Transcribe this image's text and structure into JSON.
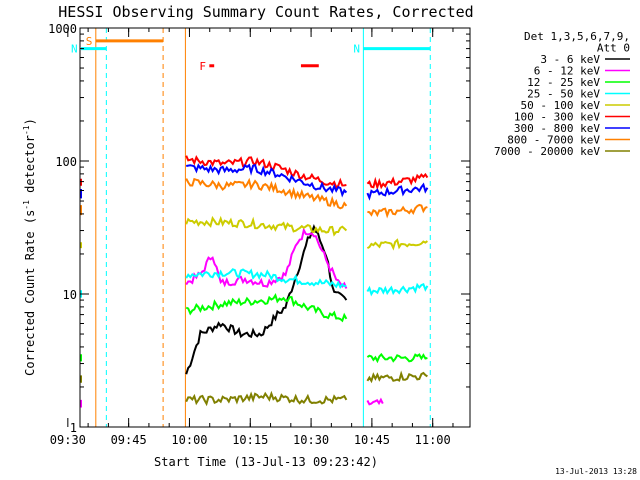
{
  "chart_data": {
    "type": "line",
    "title": "HESSI Observing Summary Count Rates, Corrected",
    "xlabel": "Start Time (13-Jul-13 09:23:42)",
    "ylabel": "Corrected Count Rate (s⁻¹ detector⁻¹)",
    "ylabel_parts": [
      "Corrected Count Rate (s",
      "-1",
      " detector",
      "-1",
      ")"
    ],
    "yscale": "log",
    "ylim": [
      1,
      1000
    ],
    "ytick_values": [
      1,
      10,
      100,
      1000
    ],
    "ytick_labels": [
      "1",
      "10",
      "100",
      "1000"
    ],
    "xlim_minutes": [
      9.3,
      105.5
    ],
    "xticks": [
      {
        "label": "09:30",
        "minute": 6.3
      },
      {
        "label": "09:45",
        "minute": 21.3
      },
      {
        "label": "10:00",
        "minute": 36.3
      },
      {
        "label": "10:15",
        "minute": 51.3
      },
      {
        "label": "10:30",
        "minute": 66.3
      },
      {
        "label": "10:45",
        "minute": 81.3
      },
      {
        "label": "11:00",
        "minute": 96.3
      }
    ],
    "legend_header": [
      "Det 1,3,5,6,7,9,",
      "Att 0"
    ],
    "legend_position": "right",
    "series": [
      {
        "name": "3 - 6 keV",
        "color": "#000000",
        "segments": [
          {
            "x": [
              35.5,
              39,
              44,
              49,
              54,
              58,
              60,
              63,
              65.5,
              67,
              70,
              72,
              75
            ],
            "y": [
              2.5,
              5,
              6,
              5,
              5,
              7,
              8,
              15,
              25,
              32,
              20,
              10,
              9
            ]
          }
        ]
      },
      {
        "name": "6 - 12 keV",
        "color": "#ff00ff",
        "segments": [
          {
            "x": [
              -1,
              0,
              5
            ],
            "y": [
              1.5,
              1.5,
              1.5
            ]
          },
          {
            "x": [
              35.5,
              39,
              42,
              44,
              50,
              55,
              60,
              63,
              65,
              67,
              70,
              73,
              75
            ],
            "y": [
              12,
              14,
              20,
              12,
              13,
              12,
              14,
              25,
              30,
              29,
              18,
              12,
              11
            ]
          },
          {
            "x": [
              80.2,
              84
            ],
            "y": [
              1.5,
              1.5
            ]
          }
        ]
      },
      {
        "name": "12 - 25 keV",
        "color": "#00ff00",
        "segments": [
          {
            "x": [
              -1,
              5
            ],
            "y": [
              3.3,
              3.3
            ]
          },
          {
            "x": [
              35.5,
              45,
              55,
              60,
              65,
              70,
              75
            ],
            "y": [
              7.5,
              8.5,
              9,
              9.5,
              8,
              7,
              6.5
            ]
          },
          {
            "x": [
              80.2,
              90,
              95
            ],
            "y": [
              3.3,
              3.3,
              3.3
            ]
          }
        ]
      },
      {
        "name": "25 - 50 keV",
        "color": "#00ffff",
        "segments": [
          {
            "x": [
              -1,
              2,
              5
            ],
            "y": [
              10,
              10,
              10
            ]
          },
          {
            "x": [
              35.5,
              45,
              55,
              60,
              65,
              70,
              75
            ],
            "y": [
              14,
              14.5,
              14,
              13,
              12.5,
              12,
              11.5
            ]
          },
          {
            "x": [
              80.2,
              90,
              95
            ],
            "y": [
              10.5,
              11,
              11.5
            ]
          }
        ]
      },
      {
        "name": "50 - 100 keV",
        "color": "#cccc00",
        "segments": [
          {
            "x": [
              -1,
              2,
              5
            ],
            "y": [
              23,
              23,
              23
            ]
          },
          {
            "x": [
              35.5,
              40,
              50,
              55,
              60,
              65,
              70,
              75
            ],
            "y": [
              35,
              35,
              34,
              33,
              32,
              31,
              30,
              30
            ]
          },
          {
            "x": [
              80.2,
              90,
              95
            ],
            "y": [
              23,
              24,
              25
            ]
          }
        ]
      },
      {
        "name": "100 - 300 keV",
        "color": "#ff0000",
        "segments": [
          {
            "x": [
              -1,
              2,
              5
            ],
            "y": [
              72,
              70,
              68
            ]
          },
          {
            "x": [
              35.5,
              45,
              52,
              58,
              64,
              70,
              75
            ],
            "y": [
              103,
              95,
              100,
              90,
              78,
              70,
              66
            ]
          },
          {
            "x": [
              80.2,
              88,
              95
            ],
            "y": [
              66,
              70,
              75
            ]
          }
        ]
      },
      {
        "name": "300 - 800 keV",
        "color": "#0000ff",
        "segments": [
          {
            "x": [
              -1,
              2,
              5
            ],
            "y": [
              60,
              57,
              54
            ]
          },
          {
            "x": [
              35.5,
              45,
              52,
              58,
              64,
              70,
              75
            ],
            "y": [
              90,
              85,
              88,
              80,
              70,
              62,
              58
            ]
          },
          {
            "x": [
              80.2,
              88,
              95
            ],
            "y": [
              56,
              60,
              63
            ]
          }
        ]
      },
      {
        "name": "800 - 7000 keV",
        "color": "#ff8000",
        "segments": [
          {
            "x": [
              -1,
              2,
              5
            ],
            "y": [
              45,
              42,
              40
            ]
          },
          {
            "x": [
              35.5,
              45,
              52,
              58,
              64,
              70,
              75
            ],
            "y": [
              70,
              65,
              67,
              62,
              55,
              50,
              46
            ]
          },
          {
            "x": [
              80.2,
              88,
              95
            ],
            "y": [
              40,
              42,
              45
            ]
          }
        ]
      },
      {
        "name": "7000 - 20000 keV",
        "color": "#808000",
        "segments": [
          {
            "x": [
              -1,
              5
            ],
            "y": [
              2.3,
              2.3
            ]
          },
          {
            "x": [
              35.5,
              45,
              55,
              65,
              75
            ],
            "y": [
              1.6,
              1.6,
              1.7,
              1.6,
              1.6
            ]
          },
          {
            "x": [
              80.2,
              90,
              95
            ],
            "y": [
              2.3,
              2.4,
              2.4
            ]
          }
        ]
      }
    ],
    "flags": [
      {
        "label": "S",
        "color": "#ff8000",
        "x_start": 13.2,
        "x_end": 29.8,
        "y": 800
      },
      {
        "label": "N",
        "color": "#00ffff",
        "x_start": -1,
        "x_end": 15.8,
        "y": 700
      },
      {
        "label": "N",
        "color": "#00ffff",
        "x_start": 79.2,
        "x_end": 95.7,
        "y": 700
      },
      {
        "label": "F",
        "color": "#ff0000",
        "x_start": 41.2,
        "x_end": 42.4,
        "y": 520
      },
      {
        "label": "",
        "color": "#ff0000",
        "x_start": 63.8,
        "x_end": 68.2,
        "y": 520
      }
    ],
    "boundaries": [
      {
        "minute": 13.2,
        "color": "#ff8000",
        "style": "solid"
      },
      {
        "minute": 15.8,
        "color": "#00ffff",
        "style": "dashed"
      },
      {
        "minute": 29.8,
        "color": "#ff8000",
        "style": "dashed"
      },
      {
        "minute": 35.3,
        "color": "#ff8000",
        "style": "solid"
      },
      {
        "minute": 79.2,
        "color": "#00ffff",
        "style": "solid"
      },
      {
        "minute": 95.7,
        "color": "#00ffff",
        "style": "dashed"
      }
    ]
  },
  "footer_timestamp": "13-Jul-2013 13:28"
}
